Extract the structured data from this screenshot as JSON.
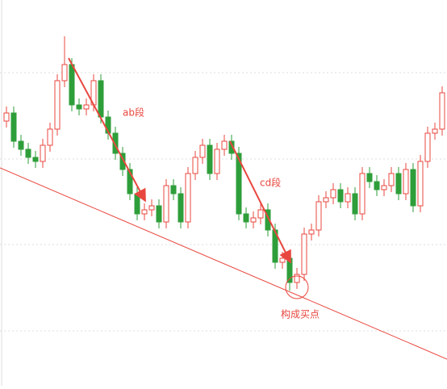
{
  "chart_data": {
    "type": "candlestick",
    "annotations": [
      "ab段",
      "cd段",
      "构成买点"
    ],
    "open": [
      328,
      338,
      303,
      293,
      283,
      278,
      298,
      318,
      378,
      398,
      348,
      343,
      348,
      378,
      333,
      313,
      288,
      268,
      238,
      213,
      218,
      223,
      203,
      248,
      238,
      203,
      263,
      283,
      298,
      263,
      293,
      303,
      288,
      213,
      203,
      208,
      218,
      193,
      153,
      158,
      128,
      138,
      188,
      193,
      228,
      233,
      243,
      228,
      238,
      213,
      263,
      253,
      243,
      248,
      263,
      238,
      268,
      223,
      278,
      313,
      318
    ],
    "close": [
      338,
      303,
      293,
      283,
      278,
      298,
      318,
      378,
      398,
      348,
      343,
      348,
      378,
      333,
      313,
      288,
      268,
      238,
      213,
      218,
      223,
      203,
      248,
      238,
      203,
      263,
      283,
      298,
      263,
      293,
      303,
      288,
      213,
      203,
      208,
      218,
      193,
      153,
      158,
      128,
      138,
      188,
      193,
      228,
      233,
      243,
      228,
      238,
      213,
      263,
      253,
      243,
      248,
      263,
      238,
      268,
      223,
      278,
      313,
      318,
      363
    ],
    "high": [
      346,
      346,
      311,
      301,
      291,
      306,
      326,
      386,
      433,
      406,
      356,
      356,
      386,
      386,
      341,
      321,
      296,
      276,
      246,
      226,
      231,
      231,
      256,
      256,
      246,
      271,
      291,
      306,
      306,
      301,
      311,
      311,
      296,
      221,
      216,
      226,
      226,
      201,
      166,
      166,
      146,
      196,
      201,
      236,
      241,
      251,
      251,
      246,
      246,
      271,
      271,
      261,
      256,
      271,
      271,
      276,
      276,
      286,
      321,
      326,
      371
    ],
    "low": [
      320,
      295,
      285,
      275,
      270,
      270,
      290,
      310,
      370,
      340,
      335,
      335,
      340,
      325,
      305,
      280,
      260,
      230,
      205,
      205,
      210,
      195,
      195,
      230,
      195,
      195,
      255,
      275,
      255,
      255,
      285,
      280,
      205,
      195,
      195,
      200,
      185,
      145,
      145,
      118,
      120,
      130,
      180,
      185,
      220,
      225,
      220,
      220,
      205,
      205,
      245,
      235,
      235,
      240,
      230,
      230,
      215,
      215,
      270,
      305,
      310
    ],
    "ylim": [
      0,
      478
    ],
    "up_color": "#e8473f",
    "down_color": "#2e9e3a"
  }
}
